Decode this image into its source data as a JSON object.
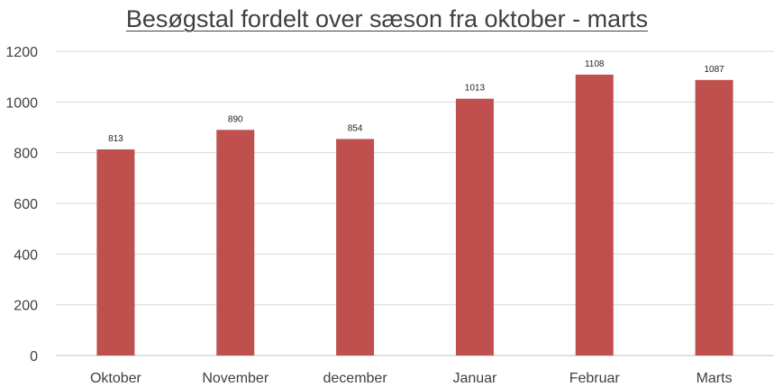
{
  "chart_data": {
    "type": "bar",
    "title": "Besøgstal fordelt over sæson fra oktober - marts",
    "categories": [
      "Oktober",
      "November",
      "december",
      "Januar",
      "Februar",
      "Marts"
    ],
    "values": [
      813,
      890,
      854,
      1013,
      1108,
      1087
    ],
    "xlabel": "",
    "ylabel": "",
    "ylim": [
      0,
      1200
    ],
    "yticks": [
      0,
      200,
      400,
      600,
      800,
      1000,
      1200
    ],
    "grid": true,
    "legend": "none",
    "bar_color": "#c0504d",
    "grid_color": "#d9d9d9"
  }
}
